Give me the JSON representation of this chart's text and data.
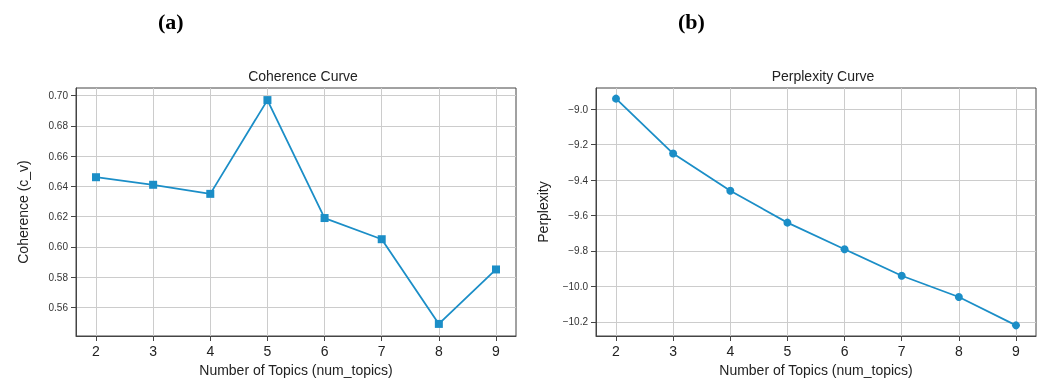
{
  "chart_data": [
    {
      "type": "line",
      "title": "Coherence Curve",
      "annotations": [
        "(a)"
      ],
      "xlabel": "Number of Topics (num_topics)",
      "ylabel": "Coherence (c_v)",
      "x": [
        2,
        3,
        4,
        5,
        6,
        7,
        8,
        9
      ],
      "series": [
        {
          "color": "#1b8ec7",
          "values": [
            0.646,
            0.641,
            0.635,
            0.697,
            0.619,
            0.605,
            0.549,
            0.585
          ]
        }
      ],
      "xlim": [
        1.65,
        9.35
      ],
      "xticks": [
        2,
        3,
        4,
        5,
        6,
        7,
        8,
        9
      ],
      "ylim": [
        0.541,
        0.705
      ],
      "yticks": [
        {
          "value": 0.56,
          "label": "0.56"
        },
        {
          "value": 0.58,
          "label": "0.58"
        },
        {
          "value": 0.6,
          "label": "0.60"
        },
        {
          "value": 0.62,
          "label": "0.62"
        },
        {
          "value": 0.64,
          "label": "0.64"
        },
        {
          "value": 0.66,
          "label": "0.66"
        },
        {
          "value": 0.68,
          "label": "0.68"
        },
        {
          "value": 0.7,
          "label": "0.70"
        }
      ],
      "grid": true,
      "marker": "square",
      "line_style": "solid"
    },
    {
      "type": "line",
      "title": "Perplexity Curve",
      "annotations": [
        "(b)"
      ],
      "xlabel": "Number of Topics (num_topics)",
      "ylabel": "Perplexity",
      "x": [
        2,
        3,
        4,
        5,
        6,
        7,
        8,
        9
      ],
      "series": [
        {
          "color": "#1b8ec7",
          "values": [
            -8.94,
            -9.25,
            -9.46,
            -9.64,
            -9.79,
            -9.94,
            -10.06,
            -10.22
          ]
        }
      ],
      "xlim": [
        1.65,
        9.35
      ],
      "xticks": [
        2,
        3,
        4,
        5,
        6,
        7,
        8,
        9
      ],
      "ylim": [
        -10.28,
        -8.88
      ],
      "yticks": [
        {
          "value": -10.2,
          "label": "−10.2"
        },
        {
          "value": -10,
          "label": "−10.0"
        },
        {
          "value": -9.8,
          "label": "−9.8"
        },
        {
          "value": -9.6,
          "label": "−9.6"
        },
        {
          "value": -9.4,
          "label": "−9.4"
        },
        {
          "value": -9.2,
          "label": "−9.2"
        },
        {
          "value": -9,
          "label": "−9.0"
        }
      ],
      "grid": true,
      "marker": "circle",
      "line_style": "solid"
    }
  ]
}
